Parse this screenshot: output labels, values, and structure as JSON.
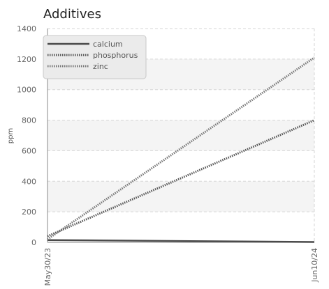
{
  "chart_data": {
    "type": "line",
    "title": "Additives",
    "xlabel": "",
    "ylabel": "ppm",
    "x": [
      "May30/23",
      "Jun10/24"
    ],
    "ylim": [
      0,
      1400
    ],
    "yticks": [
      0,
      200,
      400,
      600,
      800,
      1000,
      1200,
      1400
    ],
    "grid": true,
    "legend_position": "top-left",
    "series": [
      {
        "name": "calcium",
        "values": [
          15,
          2
        ],
        "color": "#4a4a4a",
        "style": "solid"
      },
      {
        "name": "phosphorus",
        "values": [
          40,
          800
        ],
        "color": "#555555",
        "style": "dotted"
      },
      {
        "name": "zinc",
        "values": [
          20,
          1210
        ],
        "color": "#777777",
        "style": "dotted"
      }
    ]
  }
}
